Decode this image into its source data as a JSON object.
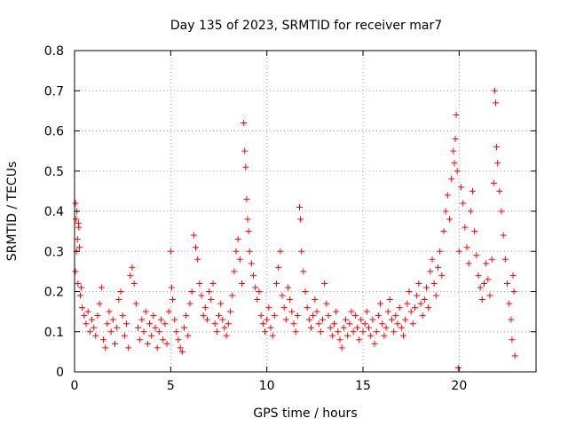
{
  "chart_data": {
    "type": "scatter",
    "title": "Day 135 of 2023, SRMTID for receiver mar7",
    "xlabel": "GPS time / hours",
    "ylabel": "SRMTID / TECUs",
    "xlim": [
      0,
      24
    ],
    "ylim": [
      0,
      0.8
    ],
    "xticks": [
      "0",
      "5",
      "10",
      "15",
      "20"
    ],
    "yticks": [
      "0",
      "0.1",
      "0.2",
      "0.3",
      "0.4",
      "0.5",
      "0.6",
      "0.7",
      "0.8"
    ],
    "grid": true,
    "marker": "+",
    "color": "#ff0000",
    "series": [
      {
        "name": "SRMTID",
        "points": [
          [
            0.05,
            0.42
          ],
          [
            0.08,
            0.38
          ],
          [
            0.12,
            0.4
          ],
          [
            0.15,
            0.33
          ],
          [
            0.2,
            0.37
          ],
          [
            0.1,
            0.3
          ],
          [
            0.05,
            0.25
          ],
          [
            0.18,
            0.22
          ],
          [
            0.22,
            0.36
          ],
          [
            0.25,
            0.31
          ],
          [
            0.3,
            0.19
          ],
          [
            0.35,
            0.21
          ],
          [
            0.4,
            0.16
          ],
          [
            0.5,
            0.14
          ],
          [
            0.6,
            0.12
          ],
          [
            0.7,
            0.15
          ],
          [
            0.8,
            0.1
          ],
          [
            0.9,
            0.13
          ],
          [
            1.0,
            0.11
          ],
          [
            1.1,
            0.09
          ],
          [
            1.2,
            0.14
          ],
          [
            1.3,
            0.17
          ],
          [
            1.4,
            0.21
          ],
          [
            1.5,
            0.08
          ],
          [
            1.6,
            0.06
          ],
          [
            1.7,
            0.12
          ],
          [
            1.8,
            0.15
          ],
          [
            1.9,
            0.1
          ],
          [
            2.0,
            0.13
          ],
          [
            2.1,
            0.07
          ],
          [
            2.2,
            0.11
          ],
          [
            2.3,
            0.18
          ],
          [
            2.4,
            0.2
          ],
          [
            2.5,
            0.14
          ],
          [
            2.6,
            0.09
          ],
          [
            2.7,
            0.12
          ],
          [
            2.8,
            0.06
          ],
          [
            2.9,
            0.24
          ],
          [
            3.0,
            0.26
          ],
          [
            3.1,
            0.22
          ],
          [
            3.2,
            0.17
          ],
          [
            3.3,
            0.11
          ],
          [
            3.4,
            0.08
          ],
          [
            3.5,
            0.13
          ],
          [
            3.6,
            0.1
          ],
          [
            3.7,
            0.15
          ],
          [
            3.8,
            0.07
          ],
          [
            3.9,
            0.12
          ],
          [
            4.0,
            0.09
          ],
          [
            4.1,
            0.14
          ],
          [
            4.2,
            0.11
          ],
          [
            4.3,
            0.06
          ],
          [
            4.4,
            0.1
          ],
          [
            4.5,
            0.13
          ],
          [
            4.6,
            0.08
          ],
          [
            4.7,
            0.12
          ],
          [
            4.8,
            0.07
          ],
          [
            4.9,
            0.15
          ],
          [
            5.0,
            0.3
          ],
          [
            5.05,
            0.21
          ],
          [
            5.1,
            0.18
          ],
          [
            5.2,
            0.13
          ],
          [
            5.3,
            0.1
          ],
          [
            5.4,
            0.08
          ],
          [
            5.5,
            0.06
          ],
          [
            5.6,
            0.05
          ],
          [
            5.7,
            0.11
          ],
          [
            5.8,
            0.14
          ],
          [
            5.9,
            0.09
          ],
          [
            6.0,
            0.17
          ],
          [
            6.1,
            0.2
          ],
          [
            6.2,
            0.34
          ],
          [
            6.3,
            0.31
          ],
          [
            6.4,
            0.28
          ],
          [
            6.5,
            0.22
          ],
          [
            6.6,
            0.19
          ],
          [
            6.7,
            0.14
          ],
          [
            6.8,
            0.16
          ],
          [
            6.9,
            0.13
          ],
          [
            7.0,
            0.2
          ],
          [
            7.1,
            0.18
          ],
          [
            7.2,
            0.22
          ],
          [
            7.3,
            0.12
          ],
          [
            7.4,
            0.1
          ],
          [
            7.5,
            0.14
          ],
          [
            7.6,
            0.17
          ],
          [
            7.7,
            0.13
          ],
          [
            7.8,
            0.11
          ],
          [
            7.9,
            0.09
          ],
          [
            8.0,
            0.12
          ],
          [
            8.1,
            0.15
          ],
          [
            8.2,
            0.19
          ],
          [
            8.3,
            0.25
          ],
          [
            8.4,
            0.3
          ],
          [
            8.5,
            0.33
          ],
          [
            8.6,
            0.28
          ],
          [
            8.7,
            0.22
          ],
          [
            8.8,
            0.62
          ],
          [
            8.85,
            0.55
          ],
          [
            8.9,
            0.51
          ],
          [
            8.95,
            0.43
          ],
          [
            9.0,
            0.38
          ],
          [
            9.05,
            0.35
          ],
          [
            9.1,
            0.3
          ],
          [
            9.2,
            0.27
          ],
          [
            9.3,
            0.24
          ],
          [
            9.4,
            0.21
          ],
          [
            9.5,
            0.18
          ],
          [
            9.6,
            0.2
          ],
          [
            9.7,
            0.14
          ],
          [
            9.8,
            0.12
          ],
          [
            9.9,
            0.1
          ],
          [
            10.0,
            0.13
          ],
          [
            10.1,
            0.16
          ],
          [
            10.2,
            0.11
          ],
          [
            10.3,
            0.09
          ],
          [
            10.4,
            0.14
          ],
          [
            10.5,
            0.22
          ],
          [
            10.6,
            0.26
          ],
          [
            10.7,
            0.3
          ],
          [
            10.8,
            0.19
          ],
          [
            10.9,
            0.16
          ],
          [
            11.0,
            0.13
          ],
          [
            11.1,
            0.21
          ],
          [
            11.2,
            0.18
          ],
          [
            11.3,
            0.15
          ],
          [
            11.4,
            0.12
          ],
          [
            11.5,
            0.1
          ],
          [
            11.6,
            0.14
          ],
          [
            11.7,
            0.41
          ],
          [
            11.75,
            0.38
          ],
          [
            11.8,
            0.3
          ],
          [
            11.9,
            0.25
          ],
          [
            12.0,
            0.2
          ],
          [
            12.1,
            0.16
          ],
          [
            12.2,
            0.13
          ],
          [
            12.3,
            0.11
          ],
          [
            12.4,
            0.14
          ],
          [
            12.5,
            0.18
          ],
          [
            12.6,
            0.15
          ],
          [
            12.7,
            0.12
          ],
          [
            12.8,
            0.1
          ],
          [
            12.9,
            0.13
          ],
          [
            13.0,
            0.22
          ],
          [
            13.1,
            0.17
          ],
          [
            13.2,
            0.14
          ],
          [
            13.3,
            0.11
          ],
          [
            13.4,
            0.09
          ],
          [
            13.5,
            0.12
          ],
          [
            13.6,
            0.15
          ],
          [
            13.7,
            0.1
          ],
          [
            13.8,
            0.08
          ],
          [
            13.9,
            0.06
          ],
          [
            14.0,
            0.11
          ],
          [
            14.1,
            0.13
          ],
          [
            14.2,
            0.09
          ],
          [
            14.3,
            0.12
          ],
          [
            14.4,
            0.15
          ],
          [
            14.5,
            0.1
          ],
          [
            14.6,
            0.14
          ],
          [
            14.7,
            0.11
          ],
          [
            14.8,
            0.08
          ],
          [
            14.9,
            0.13
          ],
          [
            15.0,
            0.1
          ],
          [
            15.1,
            0.12
          ],
          [
            15.2,
            0.15
          ],
          [
            15.3,
            0.11
          ],
          [
            15.4,
            0.09
          ],
          [
            15.5,
            0.13
          ],
          [
            15.6,
            0.07
          ],
          [
            15.7,
            0.1
          ],
          [
            15.8,
            0.14
          ],
          [
            15.9,
            0.17
          ],
          [
            16.0,
            0.12
          ],
          [
            16.1,
            0.09
          ],
          [
            16.2,
            0.11
          ],
          [
            16.3,
            0.15
          ],
          [
            16.4,
            0.18
          ],
          [
            16.5,
            0.13
          ],
          [
            16.6,
            0.1
          ],
          [
            16.7,
            0.14
          ],
          [
            16.8,
            0.12
          ],
          [
            16.9,
            0.16
          ],
          [
            17.0,
            0.11
          ],
          [
            17.1,
            0.09
          ],
          [
            17.2,
            0.13
          ],
          [
            17.3,
            0.17
          ],
          [
            17.4,
            0.2
          ],
          [
            17.5,
            0.15
          ],
          [
            17.6,
            0.12
          ],
          [
            17.7,
            0.16
          ],
          [
            17.8,
            0.19
          ],
          [
            17.9,
            0.22
          ],
          [
            18.0,
            0.17
          ],
          [
            18.1,
            0.14
          ],
          [
            18.2,
            0.18
          ],
          [
            18.3,
            0.21
          ],
          [
            18.4,
            0.16
          ],
          [
            18.5,
            0.25
          ],
          [
            18.6,
            0.28
          ],
          [
            18.7,
            0.22
          ],
          [
            18.8,
            0.19
          ],
          [
            18.9,
            0.26
          ],
          [
            19.0,
            0.3
          ],
          [
            19.1,
            0.24
          ],
          [
            19.2,
            0.35
          ],
          [
            19.3,
            0.4
          ],
          [
            19.4,
            0.44
          ],
          [
            19.5,
            0.38
          ],
          [
            19.6,
            0.48
          ],
          [
            19.7,
            0.55
          ],
          [
            19.75,
            0.52
          ],
          [
            19.8,
            0.58
          ],
          [
            19.85,
            0.64
          ],
          [
            19.9,
            0.5
          ],
          [
            19.95,
            0.01
          ],
          [
            20.0,
            0.3
          ],
          [
            20.1,
            0.46
          ],
          [
            20.2,
            0.42
          ],
          [
            20.3,
            0.36
          ],
          [
            20.4,
            0.31
          ],
          [
            20.5,
            0.27
          ],
          [
            20.6,
            0.4
          ],
          [
            20.7,
            0.45
          ],
          [
            20.8,
            0.35
          ],
          [
            20.9,
            0.29
          ],
          [
            21.0,
            0.24
          ],
          [
            21.1,
            0.21
          ],
          [
            21.2,
            0.18
          ],
          [
            21.3,
            0.22
          ],
          [
            21.4,
            0.27
          ],
          [
            21.5,
            0.23
          ],
          [
            21.6,
            0.19
          ],
          [
            21.7,
            0.28
          ],
          [
            21.8,
            0.47
          ],
          [
            21.85,
            0.7
          ],
          [
            21.9,
            0.67
          ],
          [
            21.95,
            0.56
          ],
          [
            22.0,
            0.52
          ],
          [
            22.1,
            0.45
          ],
          [
            22.2,
            0.4
          ],
          [
            22.3,
            0.34
          ],
          [
            22.4,
            0.28
          ],
          [
            22.5,
            0.22
          ],
          [
            22.6,
            0.17
          ],
          [
            22.7,
            0.13
          ],
          [
            22.75,
            0.08
          ],
          [
            22.8,
            0.24
          ],
          [
            22.85,
            0.2
          ],
          [
            22.9,
            0.04
          ]
        ]
      }
    ]
  }
}
